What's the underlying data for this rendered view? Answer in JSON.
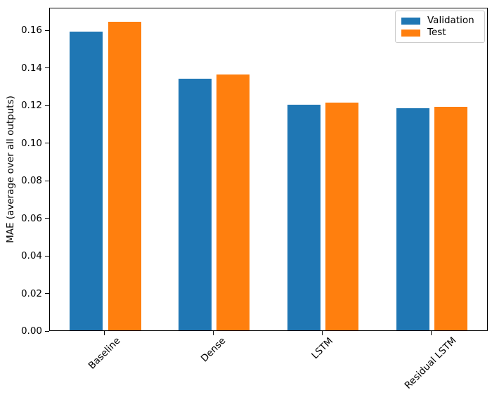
{
  "chart_data": {
    "type": "bar",
    "title": "",
    "xlabel": "",
    "ylabel": "MAE (average over all outputs)",
    "categories": [
      "Baseline",
      "Dense",
      "LSTM",
      "Residual LSTM"
    ],
    "series": [
      {
        "name": "Validation",
        "color": "#1f77b4",
        "values": [
          0.159,
          0.134,
          0.12,
          0.118
        ]
      },
      {
        "name": "Test",
        "color": "#ff7f0e",
        "values": [
          0.164,
          0.136,
          0.121,
          0.119
        ]
      }
    ],
    "ylim": [
      0,
      0.172
    ],
    "xlim": [
      -0.51,
      3.52
    ],
    "yticks": [
      0.0,
      0.02,
      0.04,
      0.06,
      0.08,
      0.1,
      0.12,
      0.14,
      0.16
    ],
    "ytick_labels": [
      "0.00",
      "0.02",
      "0.04",
      "0.06",
      "0.08",
      "0.10",
      "0.12",
      "0.14",
      "0.16"
    ],
    "xtick_rotation": 45,
    "grid": false,
    "legend_position": "upper right",
    "bar_width": 0.304,
    "bar_offsets": [
      -0.175,
      0.175
    ],
    "background_color": "#ffffff",
    "spine_color": "#000000"
  },
  "legend": {
    "items": [
      {
        "label": "Validation",
        "color": "#1f77b4"
      },
      {
        "label": "Test",
        "color": "#ff7f0e"
      }
    ]
  }
}
